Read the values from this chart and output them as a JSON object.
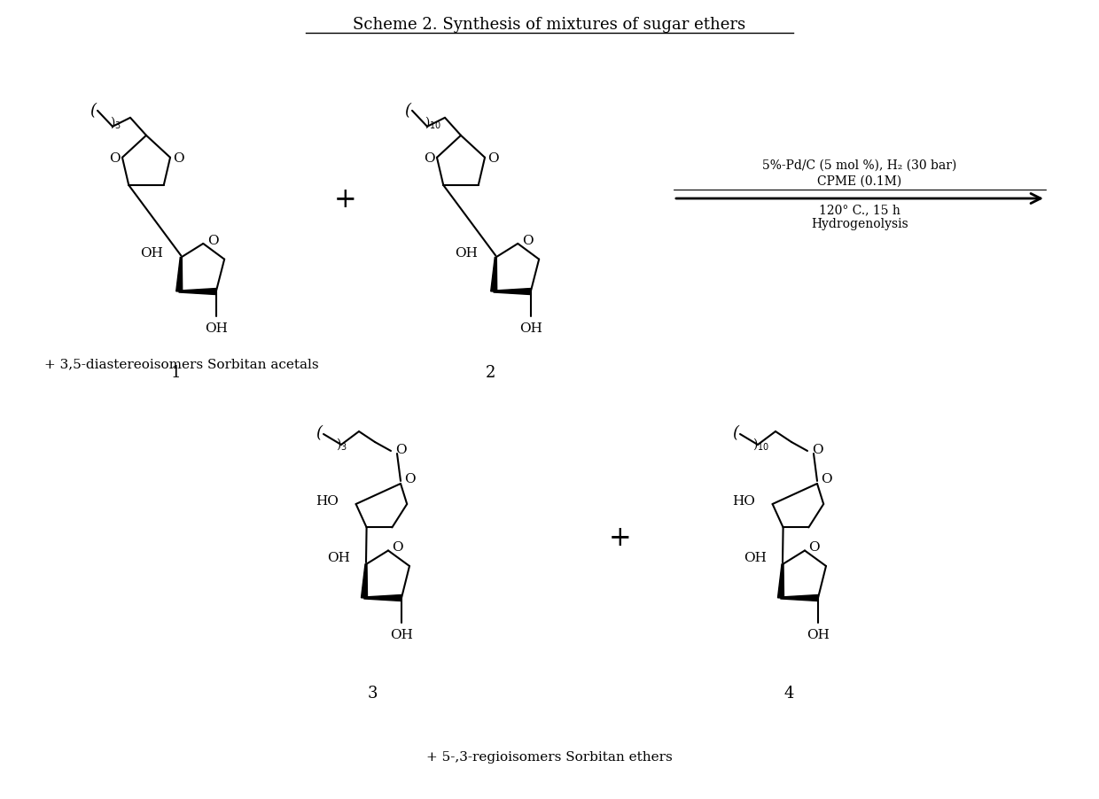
{
  "title": "Scheme 2. Synthesis of mixtures of sugar ethers",
  "reaction_arrow_text_line1": "5%-Pd/C (5 mol %), H₂ (30 bar)",
  "reaction_arrow_text_line2": "CPME (0.1M)",
  "reaction_arrow_text_line3": "120° C., 15 h",
  "reaction_arrow_text_line4": "Hydrogenolysis",
  "compound1_label": "1",
  "compound2_label": "2",
  "compound3_label": "3",
  "compound4_label": "4",
  "sub1": "3",
  "sub2": "10",
  "bottom_note": "+ 3,5-diastereoisomers Sorbitan acetals",
  "bottom_note2": "+ 5-,3-regioisomers Sorbitan ethers",
  "plus_sign": "+",
  "bg_color": "#ffffff",
  "fg_color": "#000000"
}
